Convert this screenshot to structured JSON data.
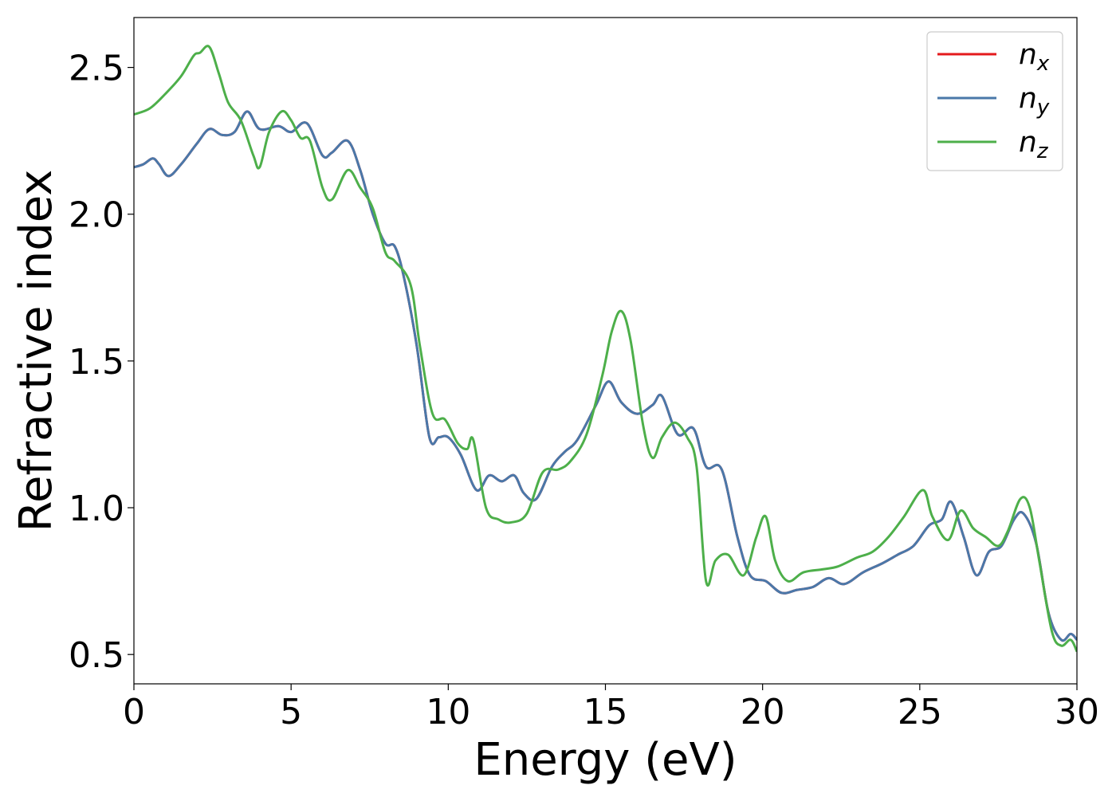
{
  "chart_data": {
    "type": "line",
    "title": "",
    "xlabel": "Energy (eV)",
    "ylabel": "Refractive index",
    "xlim": [
      0,
      30
    ],
    "ylim": [
      0.4,
      2.67
    ],
    "xticks": [
      0,
      5,
      10,
      15,
      20,
      25,
      30
    ],
    "xtick_labels": [
      "0",
      "5",
      "10",
      "15",
      "20",
      "25",
      "30"
    ],
    "yticks": [
      0.5,
      1.0,
      1.5,
      2.0,
      2.5
    ],
    "ytick_labels": [
      "0.5",
      "1.0",
      "1.5",
      "2.0",
      "2.5"
    ],
    "grid": false,
    "legend": {
      "position": "top-right",
      "entries": [
        {
          "base": "n",
          "sub": "x"
        },
        {
          "base": "n",
          "sub": "y"
        },
        {
          "base": "n",
          "sub": "z"
        }
      ]
    },
    "series": [
      {
        "name": "n_x",
        "color": "#e41a1c",
        "x": [
          0,
          0.3,
          0.6,
          0.8,
          1.1,
          1.5,
          2.0,
          2.4,
          2.8,
          3.2,
          3.6,
          4.0,
          4.6,
          5.0,
          5.5,
          6.0,
          6.3,
          6.8,
          7.2,
          7.6,
          8.0,
          8.3,
          8.6,
          9.0,
          9.4,
          9.7,
          10.0,
          10.4,
          10.9,
          11.3,
          11.7,
          12.1,
          12.4,
          12.8,
          13.3,
          13.7,
          14.1,
          14.7,
          15.1,
          15.5,
          16.0,
          16.5,
          16.8,
          17.3,
          17.8,
          18.2,
          18.7,
          19.2,
          19.6,
          20.1,
          20.6,
          21.1,
          21.6,
          22.1,
          22.6,
          23.2,
          23.8,
          24.3,
          24.8,
          25.3,
          25.7,
          26.0,
          26.4,
          26.8,
          27.2,
          27.6,
          28.0,
          28.3,
          28.7,
          29.1,
          29.5,
          29.8,
          30.0
        ],
        "y": [
          2.16,
          2.17,
          2.19,
          2.17,
          2.13,
          2.17,
          2.24,
          2.29,
          2.27,
          2.28,
          2.35,
          2.29,
          2.3,
          2.28,
          2.31,
          2.2,
          2.21,
          2.25,
          2.15,
          2.0,
          1.9,
          1.89,
          1.78,
          1.55,
          1.24,
          1.24,
          1.24,
          1.18,
          1.06,
          1.11,
          1.09,
          1.11,
          1.05,
          1.03,
          1.14,
          1.19,
          1.23,
          1.35,
          1.43,
          1.36,
          1.32,
          1.35,
          1.38,
          1.25,
          1.27,
          1.14,
          1.13,
          0.9,
          0.77,
          0.75,
          0.71,
          0.72,
          0.73,
          0.76,
          0.74,
          0.78,
          0.81,
          0.84,
          0.87,
          0.94,
          0.96,
          1.02,
          0.9,
          0.77,
          0.85,
          0.87,
          0.96,
          0.98,
          0.88,
          0.64,
          0.55,
          0.57,
          0.55
        ]
      },
      {
        "name": "n_y",
        "color": "#4a78a9",
        "x": [
          0,
          0.3,
          0.6,
          0.8,
          1.1,
          1.5,
          2.0,
          2.4,
          2.8,
          3.2,
          3.6,
          4.0,
          4.6,
          5.0,
          5.5,
          6.0,
          6.3,
          6.8,
          7.2,
          7.6,
          8.0,
          8.3,
          8.6,
          9.0,
          9.4,
          9.7,
          10.0,
          10.4,
          10.9,
          11.3,
          11.7,
          12.1,
          12.4,
          12.8,
          13.3,
          13.7,
          14.1,
          14.7,
          15.1,
          15.5,
          16.0,
          16.5,
          16.8,
          17.3,
          17.8,
          18.2,
          18.7,
          19.2,
          19.6,
          20.1,
          20.6,
          21.1,
          21.6,
          22.1,
          22.6,
          23.2,
          23.8,
          24.3,
          24.8,
          25.3,
          25.7,
          26.0,
          26.4,
          26.8,
          27.2,
          27.6,
          28.0,
          28.3,
          28.7,
          29.1,
          29.5,
          29.8,
          30.0
        ],
        "y": [
          2.16,
          2.17,
          2.19,
          2.17,
          2.13,
          2.17,
          2.24,
          2.29,
          2.27,
          2.28,
          2.35,
          2.29,
          2.3,
          2.28,
          2.31,
          2.2,
          2.21,
          2.25,
          2.15,
          2.0,
          1.9,
          1.89,
          1.78,
          1.55,
          1.24,
          1.24,
          1.24,
          1.18,
          1.06,
          1.11,
          1.09,
          1.11,
          1.05,
          1.03,
          1.14,
          1.19,
          1.23,
          1.35,
          1.43,
          1.36,
          1.32,
          1.35,
          1.38,
          1.25,
          1.27,
          1.14,
          1.13,
          0.9,
          0.77,
          0.75,
          0.71,
          0.72,
          0.73,
          0.76,
          0.74,
          0.78,
          0.81,
          0.84,
          0.87,
          0.94,
          0.96,
          1.02,
          0.9,
          0.77,
          0.85,
          0.87,
          0.96,
          0.98,
          0.88,
          0.64,
          0.55,
          0.57,
          0.55
        ]
      },
      {
        "name": "n_z",
        "color": "#4daf4a",
        "x": [
          0,
          0.5,
          1.0,
          1.5,
          1.9,
          2.1,
          2.4,
          2.7,
          3.0,
          3.4,
          3.8,
          4.0,
          4.3,
          4.7,
          5.0,
          5.3,
          5.6,
          6.0,
          6.3,
          6.8,
          7.2,
          7.6,
          8.0,
          8.3,
          8.8,
          9.1,
          9.5,
          9.9,
          10.3,
          10.6,
          10.8,
          11.2,
          11.6,
          12.0,
          12.5,
          13.0,
          13.5,
          13.9,
          14.4,
          14.9,
          15.2,
          15.5,
          15.8,
          16.2,
          16.5,
          16.8,
          17.2,
          17.6,
          17.9,
          18.2,
          18.5,
          18.9,
          19.4,
          19.8,
          20.1,
          20.4,
          20.8,
          21.3,
          21.9,
          22.4,
          23.0,
          23.5,
          24.0,
          24.5,
          25.1,
          25.4,
          25.9,
          26.3,
          26.7,
          27.1,
          27.5,
          27.8,
          28.2,
          28.5,
          28.8,
          29.2,
          29.5,
          29.8,
          30.0
        ],
        "y": [
          2.34,
          2.36,
          2.41,
          2.47,
          2.54,
          2.55,
          2.57,
          2.48,
          2.38,
          2.32,
          2.2,
          2.16,
          2.28,
          2.35,
          2.32,
          2.26,
          2.25,
          2.09,
          2.05,
          2.15,
          2.09,
          2.02,
          1.87,
          1.84,
          1.76,
          1.55,
          1.32,
          1.3,
          1.22,
          1.2,
          1.23,
          1.0,
          0.96,
          0.95,
          0.98,
          1.12,
          1.13,
          1.16,
          1.25,
          1.45,
          1.6,
          1.67,
          1.57,
          1.28,
          1.17,
          1.24,
          1.29,
          1.24,
          1.14,
          0.75,
          0.82,
          0.84,
          0.77,
          0.9,
          0.97,
          0.82,
          0.75,
          0.78,
          0.79,
          0.8,
          0.83,
          0.85,
          0.9,
          0.97,
          1.06,
          0.97,
          0.89,
          0.99,
          0.93,
          0.9,
          0.87,
          0.92,
          1.03,
          1.0,
          0.82,
          0.58,
          0.53,
          0.55,
          0.51
        ]
      }
    ]
  }
}
